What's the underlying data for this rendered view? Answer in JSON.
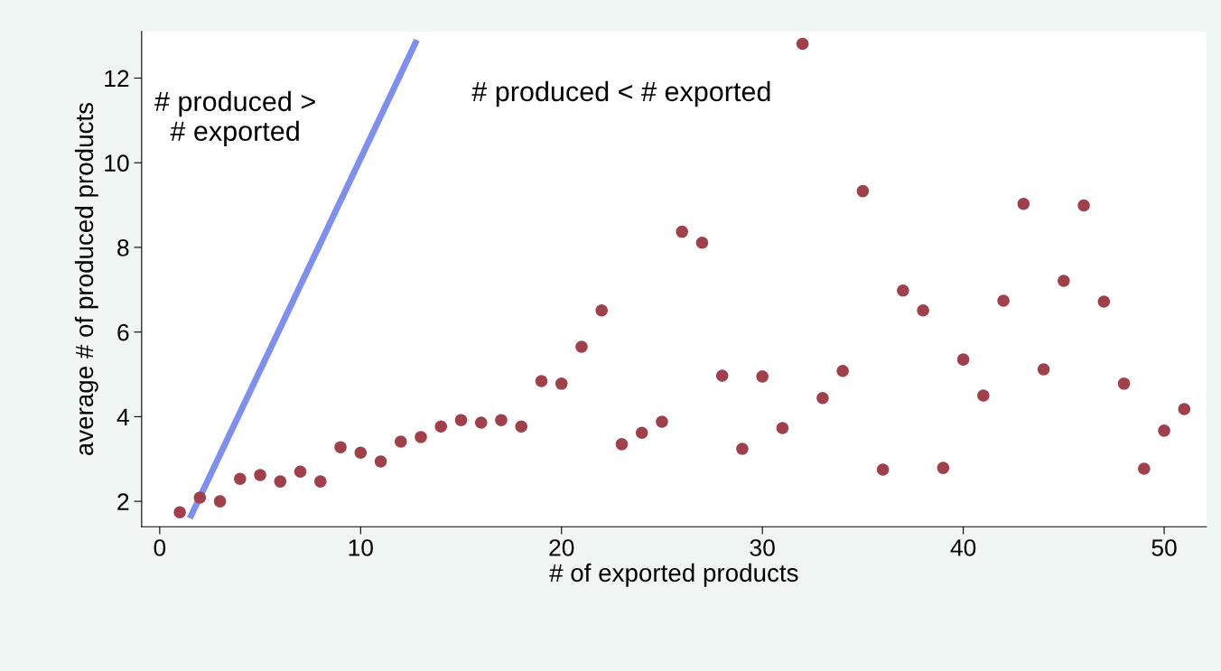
{
  "chart_data": {
    "type": "scatter",
    "xlabel": "# of exported products",
    "ylabel": "average # of produced products",
    "xlim": [
      -0.9,
      52.1
    ],
    "ylim": [
      1.4,
      13.1
    ],
    "xticks": [
      0,
      10,
      20,
      30,
      40,
      50
    ],
    "yticks": [
      2,
      4,
      6,
      8,
      10,
      12
    ],
    "grid": false,
    "annotations": [
      "# produced >\n# exported",
      "# produced < # exported"
    ],
    "series": [
      {
        "type": "line",
        "color": "#7f8ff0",
        "x": [
          1.5,
          12.8
        ],
        "values": [
          1.6,
          12.9
        ]
      },
      {
        "color": "#a0404a",
        "marker": "circle",
        "x": [
          1,
          2,
          3,
          4,
          5,
          6,
          7,
          8,
          9,
          10,
          11,
          12,
          13,
          14,
          15,
          16,
          17,
          18,
          19,
          20,
          21,
          22,
          23,
          24,
          25,
          26,
          27,
          28,
          29,
          30,
          31,
          32,
          33,
          34,
          35,
          36,
          37,
          38,
          39,
          40,
          41,
          42,
          43,
          44,
          45,
          46,
          47,
          48,
          49,
          50,
          51
        ],
        "values": [
          1.74,
          2.09,
          2.0,
          2.53,
          2.62,
          2.47,
          2.7,
          2.47,
          3.28,
          3.15,
          2.94,
          3.41,
          3.52,
          3.77,
          3.92,
          3.86,
          3.92,
          3.77,
          4.84,
          4.78,
          5.65,
          6.51,
          3.35,
          3.62,
          3.88,
          8.37,
          8.11,
          4.97,
          3.24,
          4.95,
          3.73,
          12.81,
          4.44,
          5.08,
          9.33,
          2.75,
          6.98,
          6.51,
          2.79,
          5.35,
          4.5,
          6.74,
          9.03,
          5.12,
          7.21,
          8.99,
          6.72,
          4.78,
          2.77,
          3.67,
          4.18
        ]
      }
    ]
  }
}
